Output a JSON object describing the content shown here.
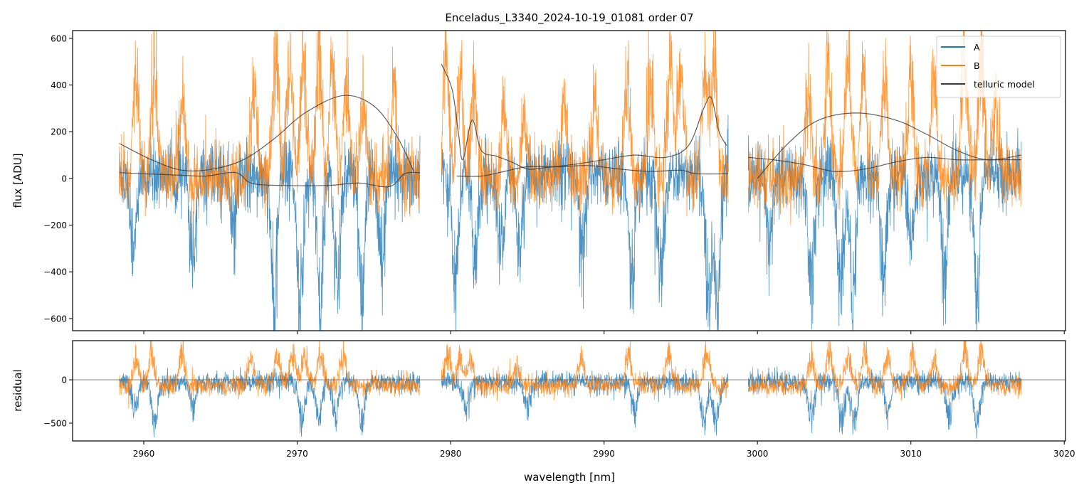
{
  "chart_data": [
    {
      "type": "line",
      "panel": "spectrum",
      "title": "Enceladus_L3340_2024-10-19_01081  order 07",
      "xlabel": "",
      "ylabel": "flux [ADU]",
      "xlim": [
        2955.36,
        3020.08
      ],
      "ylim": [
        -652,
        633
      ],
      "yticks": [
        600,
        400,
        200,
        0,
        -200,
        -400,
        -600
      ],
      "yticklabels": [
        "600",
        "400",
        "200",
        "0",
        "−200",
        "−400",
        "−600"
      ],
      "xticks": [
        2960,
        2970,
        2980,
        2990,
        3000,
        3010,
        3020
      ],
      "legend": {
        "placement": "top-right",
        "entries": [
          "A",
          "B",
          "telluric model"
        ]
      },
      "colors": {
        "A": "#1f77b4",
        "B": "#ff7f0e",
        "model": "#3a3a3a"
      },
      "segments": [
        {
          "x": [
            2958.4,
            2978.0
          ]
        },
        {
          "x": [
            2979.4,
            2998.1
          ]
        },
        {
          "x": [
            2999.4,
            3017.2
          ]
        }
      ],
      "series": [
        {
          "name": "A",
          "level": 20,
          "noise": 110,
          "dips": [
            [
              2959.3,
              -450
            ],
            [
              2963.2,
              -500
            ],
            [
              2965.8,
              -300
            ],
            [
              2968.5,
              -650
            ],
            [
              2970.2,
              -700
            ],
            [
              2971.5,
              -700
            ],
            [
              2972.6,
              -650
            ],
            [
              2974.2,
              -650
            ],
            [
              2975.5,
              -500
            ],
            [
              2980.3,
              -600
            ],
            [
              2981.6,
              -500
            ],
            [
              2983.3,
              -450
            ],
            [
              2984.5,
              -400
            ],
            [
              2988.6,
              -450
            ],
            [
              2991.8,
              -600
            ],
            [
              2993.7,
              -600
            ],
            [
              2996.8,
              -700
            ],
            [
              2997.4,
              -700
            ],
            [
              3000.8,
              -400
            ],
            [
              3003.5,
              -600
            ],
            [
              3005.4,
              -700
            ],
            [
              3006.2,
              -700
            ],
            [
              3008.2,
              -600
            ],
            [
              3010.0,
              -400
            ],
            [
              3012.2,
              -650
            ],
            [
              3014.3,
              -700
            ]
          ]
        },
        {
          "name": "B",
          "level": -10,
          "noise": 110,
          "peaks": [
            [
              2959.5,
              550
            ],
            [
              2960.7,
              600
            ],
            [
              2962.5,
              450
            ],
            [
              2967.2,
              500
            ],
            [
              2968.6,
              700
            ],
            [
              2969.5,
              700
            ],
            [
              2970.4,
              700
            ],
            [
              2971.4,
              700
            ],
            [
              2972.3,
              600
            ],
            [
              2973.2,
              500
            ],
            [
              2974.3,
              450
            ],
            [
              2976.3,
              500
            ],
            [
              2979.7,
              700
            ],
            [
              2980.6,
              600
            ],
            [
              2981.5,
              500
            ],
            [
              2983.5,
              400
            ],
            [
              2984.8,
              350
            ],
            [
              2987.4,
              400
            ],
            [
              2989.4,
              450
            ],
            [
              2991.5,
              600
            ],
            [
              2993.0,
              550
            ],
            [
              2994.3,
              700
            ],
            [
              2995.0,
              650
            ],
            [
              2996.6,
              700
            ],
            [
              2997.2,
              700
            ],
            [
              3003.3,
              500
            ],
            [
              3004.6,
              700
            ],
            [
              3005.9,
              700
            ],
            [
              3006.9,
              650
            ],
            [
              3008.3,
              550
            ],
            [
              3010.0,
              600
            ],
            [
              3011.5,
              550
            ],
            [
              3013.5,
              700
            ],
            [
              3014.6,
              700
            ],
            [
              3015.5,
              450
            ]
          ]
        },
        {
          "name": "telluric model",
          "curves": [
            [
              [
                2958.4,
                150
              ],
              [
                2960.5,
                80
              ],
              [
                2962.5,
                35
              ],
              [
                2964.5,
                40
              ],
              [
                2966.5,
                80
              ],
              [
                2968.5,
                170
              ],
              [
                2970.5,
                280
              ],
              [
                2973.0,
                355
              ],
              [
                2975.0,
                310
              ],
              [
                2976.5,
                180
              ],
              [
                2977.6,
                30
              ]
            ],
            [
              [
                2958.4,
                25
              ],
              [
                2960.0,
                20
              ],
              [
                2962.0,
                15
              ],
              [
                2964.0,
                10
              ],
              [
                2966.0,
                25
              ],
              [
                2967.0,
                -20
              ],
              [
                2969.0,
                -30
              ],
              [
                2972.0,
                -30
              ],
              [
                2974.0,
                -20
              ],
              [
                2976.0,
                -35
              ],
              [
                2977.0,
                20
              ],
              [
                2978.0,
                25
              ]
            ],
            [
              [
                2979.4,
                490
              ],
              [
                2980.1,
                380
              ],
              [
                2980.5,
                200
              ],
              [
                2980.8,
                80
              ],
              [
                2981.4,
                250
              ],
              [
                2982.0,
                120
              ],
              [
                2983.0,
                95
              ],
              [
                2984.0,
                70
              ],
              [
                2985.0,
                40
              ],
              [
                2986.0,
                45
              ],
              [
                2988.0,
                60
              ],
              [
                2990.0,
                80
              ],
              [
                2992.0,
                100
              ],
              [
                2994.0,
                90
              ],
              [
                2995.5,
                140
              ],
              [
                2996.5,
                300
              ],
              [
                2997.0,
                345
              ],
              [
                2997.5,
                200
              ],
              [
                2998.0,
                140
              ]
            ],
            [
              [
                2980.4,
                10
              ],
              [
                2982.0,
                10
              ],
              [
                2983.5,
                30
              ],
              [
                2985.0,
                50
              ],
              [
                2987.0,
                50
              ],
              [
                2989.0,
                55
              ],
              [
                2991.0,
                40
              ],
              [
                2993.0,
                30
              ],
              [
                2995.0,
                35
              ],
              [
                2996.0,
                20
              ],
              [
                2998.1,
                20
              ]
            ],
            [
              [
                3000.0,
                0
              ],
              [
                3002.0,
                150
              ],
              [
                3004.0,
                250
              ],
              [
                3006.5,
                280
              ],
              [
                3009.0,
                250
              ],
              [
                3011.0,
                190
              ],
              [
                3013.0,
                120
              ],
              [
                3015.0,
                80
              ],
              [
                3017.2,
                100
              ]
            ],
            [
              [
                2999.4,
                90
              ],
              [
                3001.0,
                80
              ],
              [
                3003.0,
                60
              ],
              [
                3005.0,
                30
              ],
              [
                3007.0,
                40
              ],
              [
                3009.0,
                70
              ],
              [
                3011.0,
                90
              ],
              [
                3013.0,
                80
              ],
              [
                3015.0,
                80
              ],
              [
                3017.2,
                80
              ]
            ]
          ]
        }
      ]
    },
    {
      "type": "line",
      "panel": "residual",
      "xlabel": "wavelength [nm]",
      "ylabel": "residual",
      "xlim": [
        2955.36,
        3020.08
      ],
      "ylim": [
        -705,
        451
      ],
      "yticks": [
        0,
        -500
      ],
      "yticklabels": [
        "0",
        "−500"
      ],
      "xticks": [
        2960,
        2970,
        2980,
        2990,
        3000,
        3010,
        3020
      ],
      "xticklabels": [
        "2960",
        "2970",
        "2980",
        "2990",
        "3000",
        "3010",
        "3020"
      ],
      "zero_line": 0,
      "series": [
        {
          "name": "A",
          "level": -20,
          "noise": 90,
          "dips": [
            [
              2959.4,
              -450
            ],
            [
              2960.7,
              -650
            ],
            [
              2963.2,
              -450
            ],
            [
              2970.3,
              -650
            ],
            [
              2971.4,
              -600
            ],
            [
              2972.5,
              -550
            ],
            [
              2974.2,
              -650
            ],
            [
              2981.0,
              -450
            ],
            [
              2985.0,
              -400
            ],
            [
              2992.0,
              -500
            ],
            [
              2996.5,
              -650
            ],
            [
              2997.3,
              -700
            ],
            [
              3003.5,
              -550
            ],
            [
              3005.5,
              -650
            ],
            [
              3006.3,
              -650
            ],
            [
              3008.5,
              -500
            ],
            [
              3012.5,
              -600
            ],
            [
              3014.3,
              -650
            ]
          ]
        },
        {
          "name": "B",
          "level": -80,
          "noise": 90,
          "peaks": [
            [
              2959.5,
              350
            ],
            [
              2960.5,
              450
            ],
            [
              2962.5,
              400
            ],
            [
              2967.0,
              350
            ],
            [
              2968.7,
              400
            ],
            [
              2969.7,
              450
            ],
            [
              2970.5,
              450
            ],
            [
              2971.5,
              400
            ],
            [
              2973.0,
              400
            ],
            [
              2979.8,
              450
            ],
            [
              2980.6,
              400
            ],
            [
              2981.3,
              350
            ],
            [
              2984.3,
              250
            ],
            [
              2988.5,
              300
            ],
            [
              2991.6,
              400
            ],
            [
              2994.2,
              450
            ],
            [
              2996.7,
              450
            ],
            [
              3003.5,
              350
            ],
            [
              3004.7,
              450
            ],
            [
              3005.9,
              450
            ],
            [
              3007.0,
              450
            ],
            [
              3008.5,
              350
            ],
            [
              3010.1,
              400
            ],
            [
              3011.5,
              350
            ],
            [
              3013.5,
              450
            ],
            [
              3014.6,
              450
            ]
          ]
        }
      ]
    }
  ]
}
